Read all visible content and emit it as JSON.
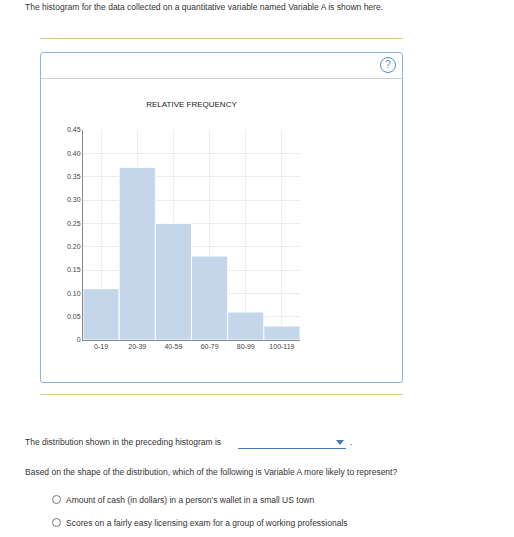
{
  "page": {
    "intro": "The histogram for the data collected on a quantitative variable named Variable A is shown here.",
    "help": "?",
    "prompt": "The distribution shown in the preceding histogram is",
    "prompt_end": ".",
    "question": "Based on the shape of the distribution, which of the following is Variable A more likely to represent?",
    "options": [
      "Amount of cash (in dollars) in a person's wallet in a small US town",
      "Scores on a fairly easy licensing exam for a group of working professionals"
    ]
  },
  "chart_data": {
    "type": "bar",
    "title": "RELATIVE FREQUENCY",
    "categories": [
      "0-19",
      "20-39",
      "40-59",
      "60-79",
      "80-99",
      "100-119"
    ],
    "values": [
      0.11,
      0.37,
      0.25,
      0.18,
      0.06,
      0.03
    ],
    "color": "#c3d6ea",
    "ylim": [
      0,
      0.45
    ],
    "yticks": [
      0,
      0.05,
      {
        "value": 0.1,
        "label": "0.10"
      },
      0.15,
      {
        "value": 0.2,
        "label": "0.20"
      },
      0.25,
      {
        "value": 0.3,
        "label": "0.30"
      },
      0.35,
      {
        "value": 0.4,
        "label": "0.40"
      },
      0.45
    ],
    "grid": true
  }
}
